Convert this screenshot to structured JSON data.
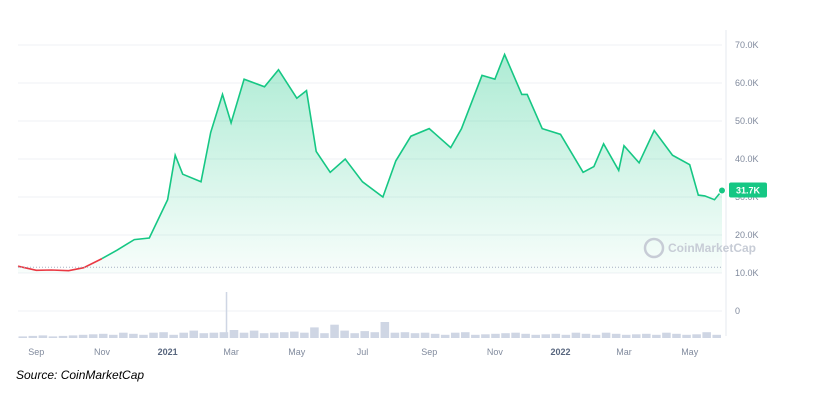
{
  "chart_data": {
    "type": "area",
    "title": "",
    "xlabel": "",
    "ylabel": "",
    "ylim": [
      0,
      75000
    ],
    "y_ticks": [
      "0",
      "10.0K",
      "20.0K",
      "30.0K",
      "40.0K",
      "50.0K",
      "60.0K",
      "70.0K"
    ],
    "y_tick_values": [
      0,
      10000,
      20000,
      30000,
      40000,
      50000,
      60000,
      70000
    ],
    "x_ticks": [
      {
        "label": "Sep",
        "date": "2020-09-01",
        "bold": false
      },
      {
        "label": "Nov",
        "date": "2020-11-01",
        "bold": false
      },
      {
        "label": "2021",
        "date": "2021-01-01",
        "bold": true
      },
      {
        "label": "Mar",
        "date": "2021-03-01",
        "bold": false
      },
      {
        "label": "May",
        "date": "2021-05-01",
        "bold": false
      },
      {
        "label": "Jul",
        "date": "2021-07-01",
        "bold": false
      },
      {
        "label": "Sep",
        "date": "2021-09-01",
        "bold": false
      },
      {
        "label": "Nov",
        "date": "2021-11-01",
        "bold": false
      },
      {
        "label": "2022",
        "date": "2022-01-01",
        "bold": true
      },
      {
        "label": "Mar",
        "date": "2022-03-01",
        "bold": false
      },
      {
        "label": "May",
        "date": "2022-05-01",
        "bold": false
      }
    ],
    "x_range": [
      "2020-08-15",
      "2022-05-31"
    ],
    "reference_line": 11500,
    "current_price_label": "31.7K",
    "current_price": 31700,
    "watermark": "CoinMarketCap",
    "grid": true,
    "series": [
      {
        "x": [
          "2020-08-15",
          "2020-09-01",
          "2020-09-15",
          "2020-10-01",
          "2020-10-15",
          "2020-11-01",
          "2020-11-15",
          "2020-12-01",
          "2020-12-15",
          "2021-01-01",
          "2021-01-08",
          "2021-01-15",
          "2021-02-01",
          "2021-02-10",
          "2021-02-21",
          "2021-03-01",
          "2021-03-13",
          "2021-04-01",
          "2021-04-14",
          "2021-05-01",
          "2021-05-10",
          "2021-05-19",
          "2021-06-01",
          "2021-06-15",
          "2021-07-01",
          "2021-07-20",
          "2021-08-01",
          "2021-08-15",
          "2021-09-01",
          "2021-09-07",
          "2021-09-21",
          "2021-10-01",
          "2021-10-20",
          "2021-11-01",
          "2021-11-10",
          "2021-11-26",
          "2021-12-01",
          "2021-12-15",
          "2022-01-01",
          "2022-01-22",
          "2022-02-01",
          "2022-02-10",
          "2022-02-24",
          "2022-03-01",
          "2022-03-15",
          "2022-03-29",
          "2022-04-15",
          "2022-05-01",
          "2022-05-09",
          "2022-05-15",
          "2022-05-24",
          "2022-05-31"
        ],
        "values": [
          11800,
          10700,
          10800,
          10600,
          11400,
          13800,
          16000,
          18800,
          19200,
          29300,
          41000,
          36000,
          34000,
          47000,
          57000,
          49500,
          61000,
          59000,
          63500,
          56000,
          58000,
          42000,
          36500,
          40000,
          34000,
          30000,
          39500,
          46000,
          48000,
          46500,
          43000,
          48000,
          62000,
          61000,
          67500,
          57000,
          57000,
          48000,
          46500,
          36500,
          38000,
          44000,
          37000,
          43500,
          39000,
          47500,
          41000,
          38500,
          30500,
          30300,
          29300,
          31700
        ]
      }
    ],
    "volume": [
      1,
      1,
      1,
      1,
      1,
      1,
      2,
      2,
      2,
      2,
      3,
      2,
      2,
      3,
      3,
      2,
      3,
      4,
      3,
      3,
      3,
      5,
      3,
      4,
      3,
      3,
      3,
      4,
      3,
      6,
      3,
      8,
      4,
      3,
      4,
      3,
      10,
      3,
      3,
      3,
      3,
      2,
      2,
      3,
      3,
      2,
      2,
      2,
      3,
      3,
      2,
      2,
      2,
      2,
      2,
      3,
      2,
      2,
      3,
      2,
      2,
      2,
      2,
      2,
      3,
      2,
      2,
      2,
      3,
      2
    ]
  },
  "source_text": "Source: CoinMarketCap",
  "colors": {
    "up_line": "#16c784",
    "down_line": "#ea3943",
    "area_top": "#16c784",
    "grid": "#eff2f5",
    "volume": "#cfd6e4",
    "badge": "#16c784"
  }
}
